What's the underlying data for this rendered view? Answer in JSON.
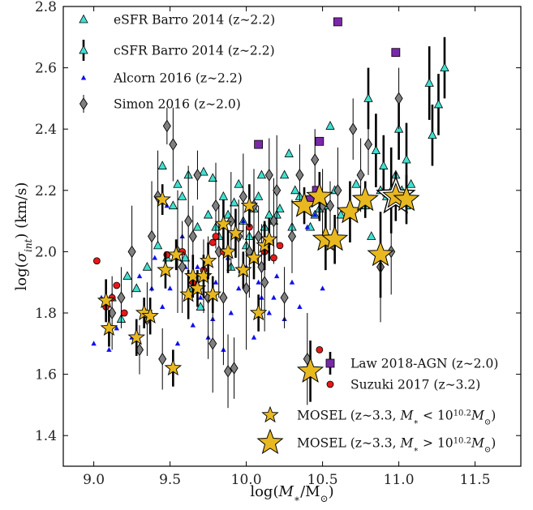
{
  "chart_data": {
    "type": "scatter",
    "xlabel": "log(M*/M⊙)",
    "ylabel": "log(σint) (km/s)",
    "xlim": [
      8.8,
      11.8
    ],
    "ylim": [
      1.3,
      2.8
    ],
    "x_ticks": [
      9.0,
      9.5,
      10.0,
      10.5,
      11.0,
      11.5
    ],
    "x_tick_labels": [
      "9.0",
      "9.5",
      "10.0",
      "10.5",
      "11.0",
      "11.5"
    ],
    "y_ticks": [
      1.4,
      1.6,
      1.8,
      2.0,
      2.2,
      2.4,
      2.6,
      2.8
    ],
    "y_tick_labels": [
      "1.4",
      "1.6",
      "1.8",
      "2.0",
      "2.2",
      "2.4",
      "2.6",
      "2.8"
    ],
    "grid": false,
    "legend_top": {
      "placement": "top-left",
      "items": [
        {
          "label": "eSFR Barro 2014 (z~2.2)",
          "marker": "triangle",
          "color": "#40e0d0"
        },
        {
          "label": "cSFR Barro 2014 (z~2.2)",
          "marker": "triangle-errorbar",
          "color": "#40e0d0"
        },
        {
          "label": "Alcorn 2016 (z~2.2)",
          "marker": "small-triangle",
          "color": "#1010ee"
        },
        {
          "label": "Simon 2016 (z~2.0)",
          "marker": "diamond",
          "color": "#808080"
        }
      ]
    },
    "legend_bottom": {
      "placement": "bottom-right",
      "items": [
        {
          "label": "Law 2018-AGN (z~2.0)",
          "marker": "square",
          "color": "#7a28a8"
        },
        {
          "label": "Suzuki 2017 (z~3.2)",
          "marker": "circle",
          "color": "#e81818"
        },
        {
          "label": "MOSEL (z~3.3, M* < 10^10.2 M⊙)",
          "label_prefix": "MOSEL (z∼3.3, ",
          "label_suffix": ")",
          "marker": "star-small",
          "color": "#e8b820"
        },
        {
          "label": "MOSEL (z~3.3, M* > 10^10.2 M⊙)",
          "label_prefix": "MOSEL (z∼3.3, ",
          "label_suffix": ")",
          "marker": "star-large",
          "color": "#e8b820"
        }
      ]
    },
    "series": [
      {
        "name": "eSFR Barro 2014 (z~2.2)",
        "marker": "triangle",
        "color": "#40e0d0",
        "x": [
          9.12,
          9.18,
          9.22,
          9.28,
          9.35,
          9.42,
          9.45,
          9.48,
          9.52,
          9.55,
          9.58,
          9.62,
          9.65,
          9.68,
          9.72,
          9.75,
          9.78,
          9.82,
          9.85,
          9.88,
          9.92,
          9.95,
          9.98,
          10.02,
          10.05,
          10.08,
          10.12,
          10.15,
          10.18,
          10.22,
          10.25,
          10.28,
          10.32,
          10.35,
          10.38,
          10.42,
          10.45,
          10.48,
          10.52,
          10.55,
          10.58,
          10.62,
          10.68,
          10.72,
          10.78,
          10.82,
          10.88,
          10.92,
          10.98,
          11.02,
          11.05,
          11.08,
          9.6,
          9.7,
          9.8,
          9.9,
          10.0,
          10.1,
          10.2,
          10.3
        ],
        "y": [
          1.85,
          1.78,
          1.92,
          1.88,
          1.95,
          2.02,
          2.28,
          1.98,
          2.15,
          2.22,
          2.18,
          2.25,
          1.88,
          2.08,
          2.26,
          2.12,
          2.24,
          2.05,
          2.18,
          2.12,
          2.16,
          2.22,
          2.1,
          2.05,
          2.14,
          2.18,
          2.08,
          2.12,
          2.1,
          2.14,
          2.25,
          2.32,
          2.2,
          2.18,
          2.16,
          2.08,
          2.12,
          2.14,
          2.15,
          2.41,
          2.2,
          2.12,
          2.14,
          2.22,
          2.15,
          2.05,
          2.2,
          2.18,
          2.25,
          2.2,
          2.15,
          2.22,
          1.98,
          1.82,
          2.08,
          1.95,
          2.02,
          2.25,
          2.12,
          2.08
        ]
      },
      {
        "name": "cSFR Barro 2014 (z~2.2)",
        "marker": "triangle-errorbar",
        "color": "#40e0d0",
        "x": [
          10.8,
          10.85,
          10.9,
          10.95,
          11.0,
          11.05,
          11.2,
          11.22,
          11.26,
          11.3
        ],
        "y": [
          2.5,
          2.33,
          2.28,
          2.2,
          2.4,
          2.3,
          2.55,
          2.38,
          2.48,
          2.6
        ],
        "err": [
          0.1,
          0.12,
          0.1,
          0.14,
          0.1,
          0.12,
          0.12,
          0.1,
          0.1,
          0.1
        ]
      },
      {
        "name": "Alcorn 2016 (z~2.2)",
        "marker": "small-triangle",
        "color": "#1010ee",
        "x": [
          9.0,
          9.05,
          9.1,
          9.15,
          9.2,
          9.25,
          9.3,
          9.35,
          9.4,
          9.45,
          9.5,
          9.55,
          9.6,
          9.65,
          9.7,
          9.75,
          9.8,
          9.85,
          9.9,
          9.95,
          10.0,
          10.05,
          10.1,
          10.15,
          10.2,
          10.25,
          10.3,
          10.35,
          10.4,
          10.45,
          10.5,
          9.38,
          9.48,
          9.58,
          9.68,
          9.78,
          9.88,
          9.98,
          10.08,
          10.18
        ],
        "y": [
          1.7,
          1.85,
          1.68,
          1.75,
          1.8,
          1.72,
          1.92,
          1.78,
          1.98,
          1.82,
          1.88,
          1.7,
          1.95,
          1.76,
          1.85,
          1.72,
          1.9,
          1.68,
          1.8,
          1.88,
          1.95,
          1.72,
          1.85,
          1.8,
          1.92,
          1.78,
          1.9,
          1.82,
          2.08,
          2.12,
          1.88,
          1.88,
          2.15,
          2.05,
          1.95,
          1.78,
          1.98,
          2.1,
          1.9,
          1.85
        ]
      },
      {
        "name": "Simon 2016 (z~2.0)",
        "marker": "diamond",
        "color": "#808080",
        "x": [
          9.12,
          9.18,
          9.25,
          9.3,
          9.35,
          9.38,
          9.42,
          9.45,
          9.48,
          9.52,
          9.55,
          9.58,
          9.62,
          9.65,
          9.68,
          9.72,
          9.75,
          9.78,
          9.8,
          9.82,
          9.85,
          9.88,
          9.9,
          9.92,
          9.95,
          9.98,
          10.0,
          10.02,
          10.05,
          10.08,
          10.1,
          10.12,
          10.15,
          10.18,
          10.2,
          10.25,
          10.3,
          10.35,
          10.4,
          10.45,
          10.5,
          10.55,
          10.6,
          10.7,
          10.75,
          10.8,
          10.88,
          10.95,
          11.0
        ],
        "y": [
          1.8,
          1.85,
          2.0,
          1.68,
          1.78,
          2.05,
          2.18,
          1.65,
          2.41,
          2.35,
          2.0,
          1.95,
          2.1,
          2.05,
          2.25,
          1.92,
          1.85,
          1.7,
          2.15,
          2.0,
          1.85,
          1.61,
          2.1,
          1.62,
          2.05,
          2.18,
          1.88,
          2.0,
          2.15,
          2.05,
          1.95,
          1.9,
          2.25,
          2.1,
          2.2,
          1.85,
          2.05,
          2.25,
          1.65,
          2.3,
          2.15,
          2.15,
          2.2,
          2.4,
          2.25,
          2.35,
          1.95,
          2.0,
          2.5
        ],
        "err": [
          0.12,
          0.1,
          0.15,
          0.08,
          0.12,
          0.18,
          0.15,
          0.1,
          0.06,
          0.12,
          0.2,
          0.15,
          0.18,
          0.1,
          0.08,
          0.12,
          0.2,
          0.16,
          0.14,
          0.15,
          0.22,
          0.12,
          0.16,
          0.1,
          0.12,
          0.14,
          0.2,
          0.15,
          0.12,
          0.1,
          0.14,
          0.16,
          0.12,
          0.14,
          0.18,
          0.1,
          0.12,
          0.1,
          0.15,
          0.1,
          0.12,
          0.08,
          0.14,
          0.1,
          0.12,
          0.1,
          0.18,
          0.14,
          0.1
        ]
      },
      {
        "name": "Law 2018-AGN (z~2.0)",
        "marker": "square",
        "color": "#7a28a8",
        "x": [
          10.08,
          10.42,
          10.46,
          10.48,
          10.6,
          10.98
        ],
        "y": [
          2.35,
          2.17,
          2.2,
          2.36,
          2.75,
          2.65
        ]
      },
      {
        "name": "Suzuki 2017 (z~3.2)",
        "marker": "circle",
        "color": "#e81818",
        "x": [
          9.02,
          9.08,
          9.12,
          9.15,
          9.2,
          9.48,
          9.58,
          9.65,
          9.72,
          9.78,
          9.8,
          9.85,
          10.02,
          10.12,
          10.18,
          10.22,
          10.48,
          10.58
        ],
        "y": [
          1.97,
          1.82,
          1.85,
          1.89,
          1.8,
          1.99,
          2.0,
          1.9,
          1.94,
          2.03,
          2.05,
          2.0,
          2.08,
          2.0,
          1.98,
          2.02,
          1.68,
          2.04
        ]
      },
      {
        "name": "MOSEL (z~3.3, M* < 10^10.2 M⊙)",
        "marker": "star-small",
        "color": "#e8b820",
        "x": [
          9.08,
          9.1,
          9.28,
          9.33,
          9.37,
          9.45,
          9.47,
          9.52,
          9.54,
          9.62,
          9.65,
          9.68,
          9.72,
          9.75,
          9.78,
          9.85,
          9.88,
          9.93,
          9.98,
          10.02,
          10.05,
          10.08,
          10.12,
          10.15
        ],
        "y": [
          1.84,
          1.75,
          1.72,
          1.8,
          1.79,
          2.17,
          1.94,
          1.62,
          1.99,
          1.86,
          1.92,
          1.88,
          1.92,
          1.97,
          1.86,
          2.09,
          2.0,
          2.06,
          1.94,
          2.15,
          1.98,
          1.8,
          2.02,
          2.04
        ],
        "err": [
          0.07,
          0.06,
          0.06,
          0.05,
          0.06,
          0.05,
          0.06,
          0.06,
          0.05,
          0.08,
          0.07,
          0.06,
          0.07,
          0.06,
          0.06,
          0.08,
          0.07,
          0.08,
          0.06,
          0.07,
          0.07,
          0.06,
          0.08,
          0.07
        ]
      },
      {
        "name": "MOSEL (z~3.3, M* > 10^10.2 M⊙)",
        "marker": "star-large",
        "color": "#e8b820",
        "x": [
          10.38,
          10.42,
          10.48,
          10.52,
          10.58,
          10.68,
          10.78,
          10.88,
          10.98,
          11.05
        ],
        "y": [
          2.15,
          1.61,
          2.18,
          2.04,
          2.04,
          2.13,
          2.17,
          1.99,
          2.18,
          2.17
        ],
        "err": [
          0.06,
          0.1,
          0.08,
          0.1,
          0.08,
          0.1,
          0.06,
          0.14,
          0.08,
          0.08
        ],
        "highlight_index": 8
      }
    ]
  }
}
